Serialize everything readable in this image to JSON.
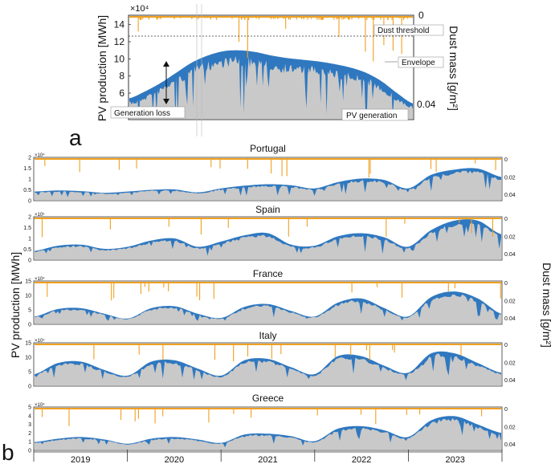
{
  "figure": {
    "panel_a_letter": "a",
    "panel_b_letter": "b",
    "panel_a": {
      "ylabel_left": "PV production [MWh]",
      "ylabel_right": "Dust mass [g/m²]",
      "exponent": "×10⁴",
      "y_ticks": [
        "14",
        "12",
        "10",
        "8",
        "6",
        "4"
      ],
      "right_ticks": [
        "0",
        "0.04"
      ],
      "annotations": {
        "dust_threshold": "Dust threshold",
        "envelope": "Envelope",
        "generation_loss": "Generation loss",
        "pv_generation": "PV generation"
      }
    },
    "panel_b": {
      "ylabel_left": "PV production [MWh]",
      "ylabel_right": "Dust mass [g/m²]",
      "right_ticks": [
        "0",
        "0.02",
        "0.04"
      ],
      "years": [
        "2019",
        "2020",
        "2021",
        "2022",
        "2023"
      ]
    }
  },
  "colors": {
    "envelope": "#2f78c0",
    "generation": "#c9c9c9",
    "dust": "#f0a020",
    "axis": "#333333"
  },
  "chart_data": [
    {
      "type": "area",
      "panel": "a",
      "scale": "×10⁴ MWh",
      "ylim": [
        3,
        15
      ],
      "dust_threshold": 12.2,
      "envelope": [
        5.4,
        6.2,
        7.2,
        8.4,
        9.6,
        10.4,
        10.9,
        11.0,
        10.8,
        10.4,
        10.1,
        9.9,
        9.7,
        9.4,
        9.0,
        8.4,
        7.4,
        6.0,
        4.8
      ]
    },
    {
      "type": "area",
      "title": "Portugal",
      "exponent": "×10⁴",
      "ylim": [
        0,
        2
      ],
      "y_ticks": [
        "2",
        "1.5",
        "1",
        "0.5",
        "0"
      ],
      "envelope": [
        0.4,
        0.45,
        0.42,
        0.34,
        0.4,
        0.48,
        0.5,
        0.36,
        0.55,
        0.68,
        0.75,
        0.7,
        0.55,
        0.85,
        1.02,
        0.95,
        0.55,
        1.2,
        1.45,
        1.5,
        1.1
      ]
    },
    {
      "type": "area",
      "title": "Spain",
      "exponent": "×10⁵",
      "ylim": [
        0,
        2
      ],
      "y_ticks": [
        "2",
        "1.5",
        "1",
        "0.5",
        "0"
      ],
      "envelope": [
        0.4,
        0.65,
        0.7,
        0.5,
        0.6,
        0.9,
        1.0,
        0.6,
        0.85,
        1.15,
        1.25,
        0.7,
        0.65,
        1.1,
        1.25,
        1.05,
        0.6,
        1.4,
        1.85,
        1.85,
        1.2
      ]
    },
    {
      "type": "area",
      "title": "France",
      "exponent": "×10⁴",
      "ylim": [
        0,
        15
      ],
      "y_ticks": [
        "15",
        "10",
        "5",
        "0"
      ],
      "envelope": [
        2.5,
        5.2,
        5.5,
        3.5,
        1.8,
        5.5,
        6.2,
        3.5,
        2.0,
        6.0,
        7.0,
        4.5,
        2.5,
        7.5,
        9.0,
        5.5,
        2.5,
        9.5,
        11.5,
        9.0,
        3.5
      ]
    },
    {
      "type": "area",
      "title": "Italy",
      "exponent": "×10⁴",
      "ylim": [
        0,
        15
      ],
      "y_ticks": [
        "15",
        "10",
        "5",
        "0"
      ],
      "envelope": [
        4.0,
        8.0,
        8.5,
        5.5,
        3.5,
        8.5,
        9.0,
        6.0,
        3.5,
        9.0,
        9.5,
        6.5,
        4.0,
        10.5,
        10.5,
        7.0,
        4.5,
        11.5,
        11.5,
        8.0,
        4.5
      ]
    },
    {
      "type": "area",
      "title": "Greece",
      "exponent": "×10⁴",
      "ylim": [
        0,
        5
      ],
      "y_ticks": [
        "5",
        "4",
        "3",
        "2",
        "1",
        "0"
      ],
      "envelope": [
        0.9,
        1.3,
        1.5,
        1.2,
        0.7,
        1.3,
        1.5,
        1.2,
        0.8,
        1.8,
        1.9,
        1.6,
        1.0,
        2.5,
        2.8,
        2.3,
        1.5,
        3.5,
        4.0,
        3.0,
        2.0
      ]
    }
  ]
}
